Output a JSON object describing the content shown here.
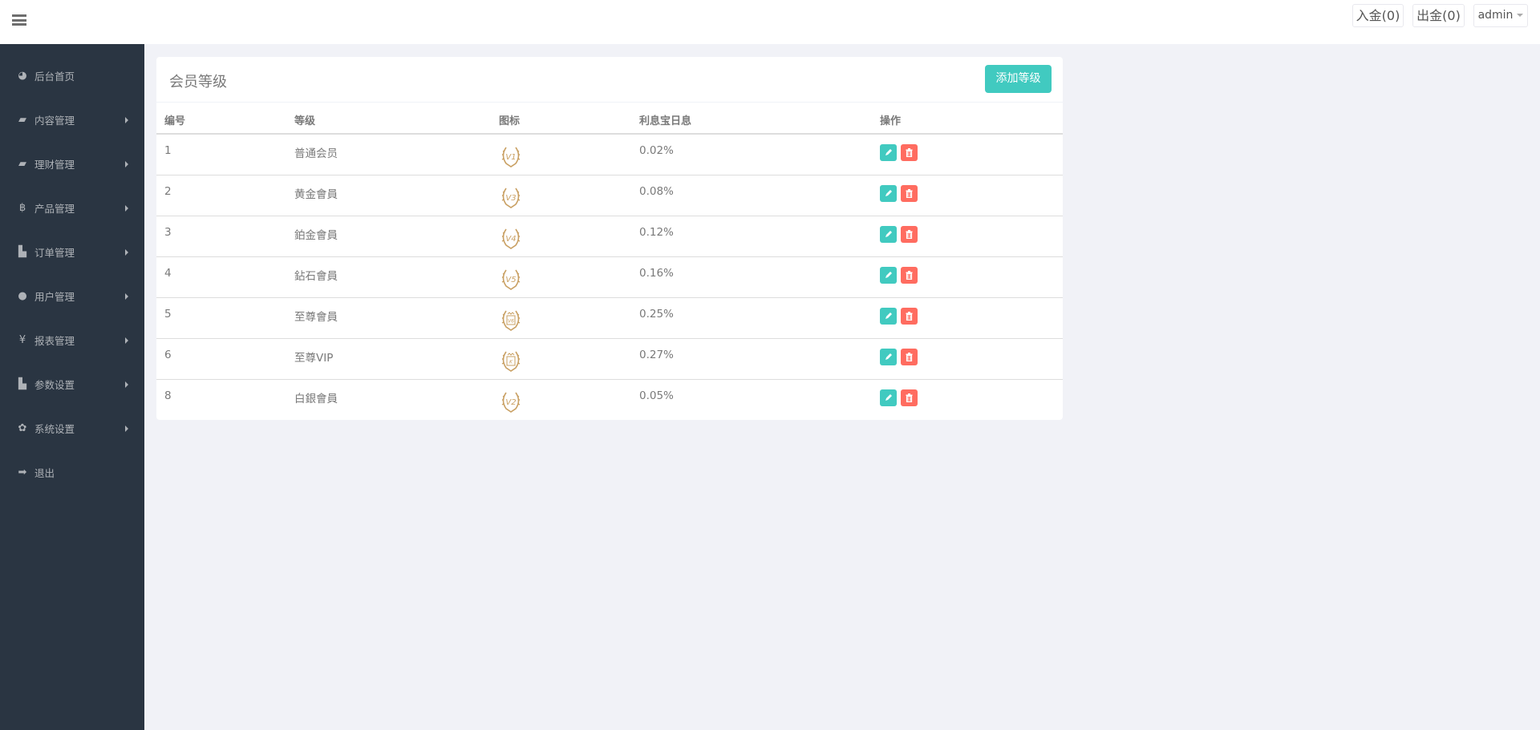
{
  "topbar": {
    "menu_icon": "bars-icon",
    "deposit": "入金(0)",
    "withdraw": "出金(0)",
    "user": "admin"
  },
  "sidebar": {
    "items": [
      {
        "label": "后台首页",
        "icon": "dashboard-icon",
        "has_arrow": false
      },
      {
        "label": "内容管理",
        "icon": "book-icon",
        "has_arrow": true
      },
      {
        "label": "理财管理",
        "icon": "book-icon",
        "has_arrow": true
      },
      {
        "label": "产品管理",
        "icon": "bitcoin-icon",
        "has_arrow": true
      },
      {
        "label": "订单管理",
        "icon": "copy-icon",
        "has_arrow": true
      },
      {
        "label": "用户管理",
        "icon": "user-icon",
        "has_arrow": true
      },
      {
        "label": "报表管理",
        "icon": "yen-icon",
        "has_arrow": true
      },
      {
        "label": "参数设置",
        "icon": "copy-icon",
        "has_arrow": true
      },
      {
        "label": "系统设置",
        "icon": "cogs-icon",
        "has_arrow": true
      },
      {
        "label": "退出",
        "icon": "sign-out-icon",
        "has_arrow": false
      }
    ]
  },
  "panel": {
    "title": "会员等级",
    "add_label": "添加等级"
  },
  "table": {
    "headers": [
      "编号",
      "等级",
      "图标",
      "利息宝日息",
      "操作"
    ],
    "rows": [
      {
        "id": "1",
        "name": "普通会员",
        "badge": "V1",
        "rate": "0.02%"
      },
      {
        "id": "2",
        "name": "黄金會員",
        "badge": "V3",
        "rate": "0.08%"
      },
      {
        "id": "3",
        "name": "鉑金會員",
        "badge": "V4",
        "rate": "0.12%"
      },
      {
        "id": "4",
        "name": "鉆石會員",
        "badge": "V5",
        "rate": "0.16%"
      },
      {
        "id": "5",
        "name": "至尊會員",
        "badge": "V6",
        "rate": "0.25%"
      },
      {
        "id": "6",
        "name": "至尊VIP",
        "badge": "K",
        "rate": "0.27%"
      },
      {
        "id": "8",
        "name": "白銀會員",
        "badge": "V2",
        "rate": "0.05%"
      }
    ]
  },
  "colors": {
    "sidebar": "#2a3542",
    "accent": "#41cac0",
    "danger": "#ff6c60",
    "badge": "#c9a063"
  }
}
